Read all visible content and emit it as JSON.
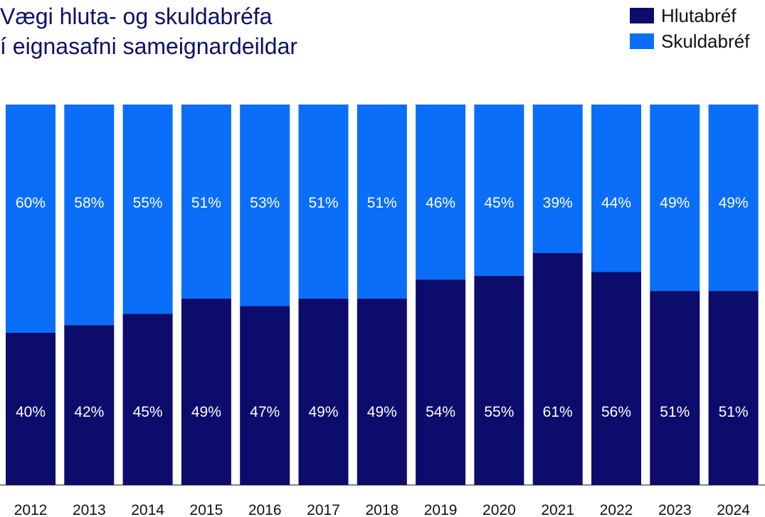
{
  "title_lines": [
    "Vægi hluta- og skuldabréfa",
    "í eignasafni sameignardeildar"
  ],
  "colors": {
    "Hlutabréf": "#0b0c6b",
    "Skuldabréf": "#0a6ef9"
  },
  "chart_data": {
    "type": "bar",
    "stacked": true,
    "categories": [
      "2012",
      "2013",
      "2014",
      "2015",
      "2016",
      "2017",
      "2018",
      "2019",
      "2020",
      "2021",
      "2022",
      "2023",
      "2024"
    ],
    "series": [
      {
        "name": "Hlutabréf",
        "values": [
          40,
          42,
          45,
          49,
          47,
          49,
          49,
          54,
          55,
          61,
          56,
          51,
          51
        ],
        "labels": [
          "40%",
          "42%",
          "45%",
          "49%",
          "47%",
          "49%",
          "49%",
          "54%",
          "55%",
          "61%",
          "56%",
          "51%",
          "51%"
        ]
      },
      {
        "name": "Skuldabréf",
        "values": [
          60,
          58,
          55,
          51,
          53,
          51,
          51,
          46,
          45,
          39,
          44,
          49,
          49
        ],
        "labels": [
          "60%",
          "58%",
          "55%",
          "51%",
          "53%",
          "51%",
          "51%",
          "46%",
          "45%",
          "39%",
          "44%",
          "49%",
          "49%"
        ]
      }
    ],
    "ylim": [
      0,
      100
    ],
    "grid": false,
    "legend": "top-right"
  }
}
